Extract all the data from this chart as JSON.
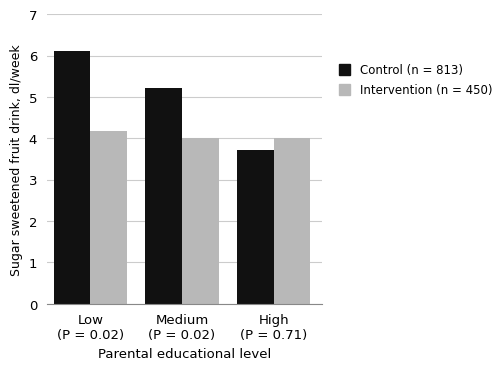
{
  "categories": [
    "Low\n(P = 0.02)",
    "Medium\n(P = 0.02)",
    "High\n(P = 0.71)"
  ],
  "control_values": [
    6.1,
    5.22,
    3.72
  ],
  "intervention_values": [
    4.18,
    4.0,
    4.0
  ],
  "control_color": "#111111",
  "intervention_color": "#b8b8b8",
  "ylabel": "Sugar sweetened fruit drink, dl/week",
  "xlabel": "Parental educational level",
  "ylim": [
    0,
    7
  ],
  "yticks": [
    0,
    1,
    2,
    3,
    4,
    5,
    6,
    7
  ],
  "legend_labels": [
    "Control (n = 813)",
    "Intervention (n = 450)"
  ],
  "bar_width": 0.32,
  "group_positions": [
    0.38,
    1.18,
    1.98
  ],
  "figsize": [
    5.0,
    3.81
  ],
  "dpi": 100
}
